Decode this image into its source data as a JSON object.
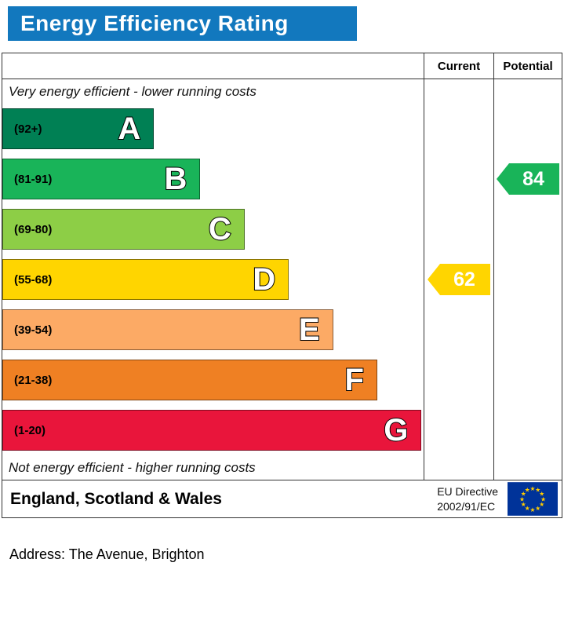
{
  "title": "Energy Efficiency Rating",
  "columns": {
    "current": "Current",
    "potential": "Potential"
  },
  "top_note": "Very energy efficient - lower running costs",
  "bottom_note": "Not energy efficient - higher running costs",
  "bands": [
    {
      "letter": "A",
      "range": "(92+)",
      "color": "#008054",
      "width_pct": 36
    },
    {
      "letter": "B",
      "range": "(81-91)",
      "color": "#19b459",
      "width_pct": 47
    },
    {
      "letter": "C",
      "range": "(69-80)",
      "color": "#8dce46",
      "width_pct": 57.5
    },
    {
      "letter": "D",
      "range": "(55-68)",
      "color": "#ffd500",
      "width_pct": 68
    },
    {
      "letter": "E",
      "range": "(39-54)",
      "color": "#fcaa65",
      "width_pct": 78.5
    },
    {
      "letter": "F",
      "range": "(21-38)",
      "color": "#ef8023",
      "width_pct": 89
    },
    {
      "letter": "G",
      "range": "(1-20)",
      "color": "#e9153b",
      "width_pct": 99.5
    }
  ],
  "ratings": {
    "current": {
      "value": "62",
      "band_index": 3,
      "color": "#ffd500"
    },
    "potential": {
      "value": "84",
      "band_index": 1,
      "color": "#19b459"
    }
  },
  "footer": {
    "region": "England, Scotland & Wales",
    "directive_line1": "EU Directive",
    "directive_line2": "2002/91/EC"
  },
  "address_line": "Address: The Avenue, Brighton",
  "colors": {
    "header_bg": "#1278be",
    "header_text": "#ffffff",
    "eu_blue": "#003399",
    "eu_star": "#ffcc00"
  },
  "chart_data": {
    "type": "bar",
    "title": "Energy Efficiency Rating",
    "categories": [
      "A (92+)",
      "B (81-91)",
      "C (69-80)",
      "D (55-68)",
      "E (39-54)",
      "F (21-38)",
      "G (1-20)"
    ],
    "band_colors": [
      "#008054",
      "#19b459",
      "#8dce46",
      "#ffd500",
      "#fcaa65",
      "#ef8023",
      "#e9153b"
    ],
    "series": [
      {
        "name": "Current",
        "value": 62,
        "band": "D"
      },
      {
        "name": "Potential",
        "value": 84,
        "band": "B"
      }
    ],
    "annotations": [
      "Very energy efficient - lower running costs",
      "Not energy efficient - higher running costs"
    ],
    "region": "England, Scotland & Wales",
    "directive": "EU Directive 2002/91/EC"
  }
}
